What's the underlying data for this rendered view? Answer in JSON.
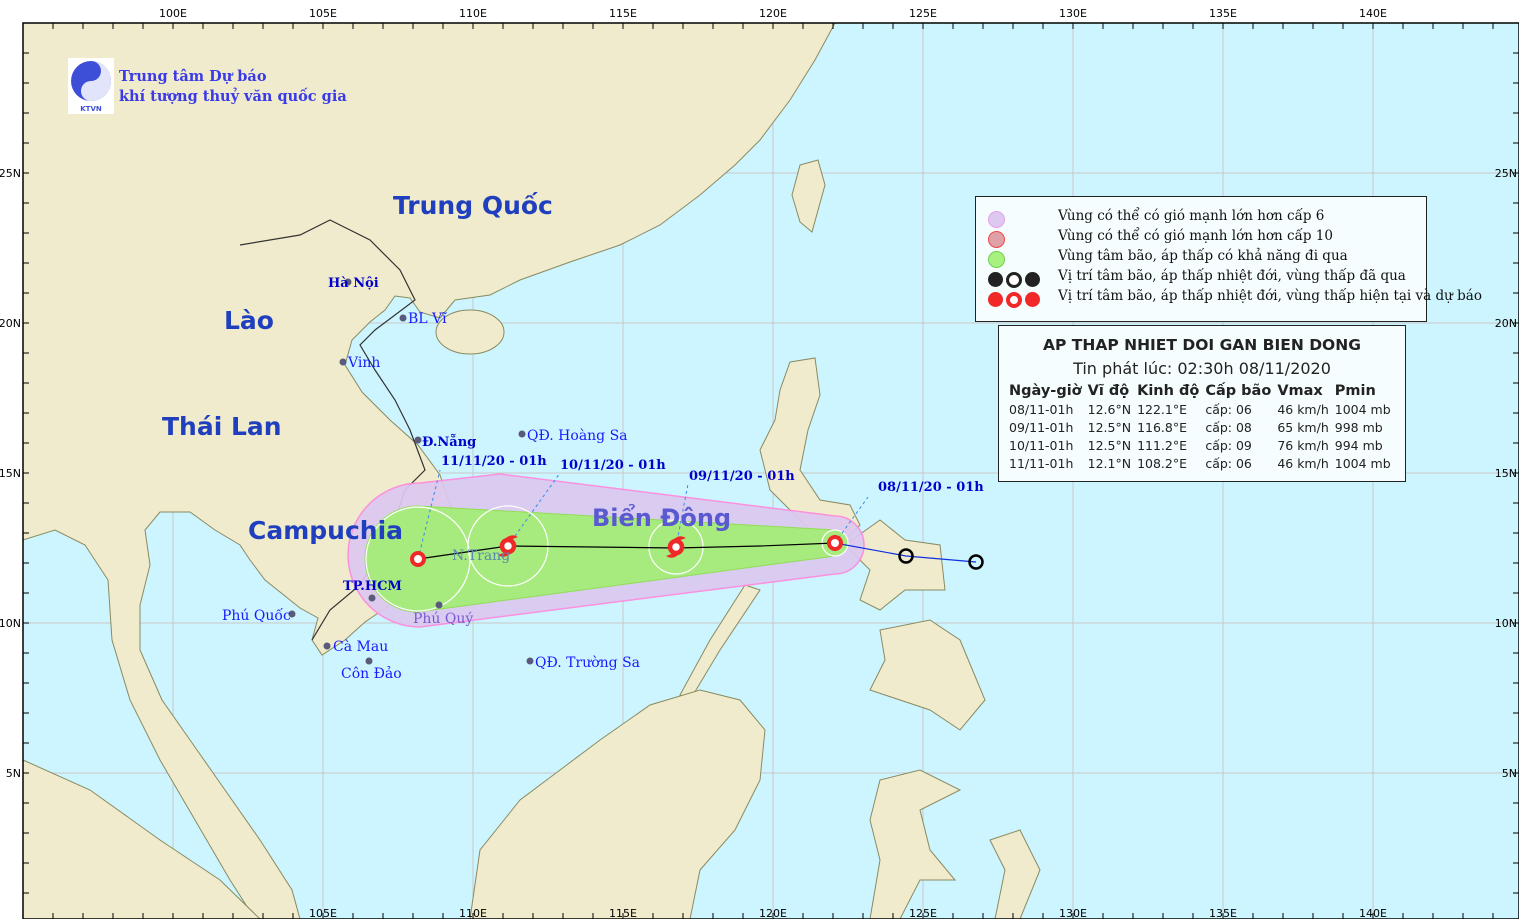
{
  "brand": {
    "line1": "Trung tâm Dự báo",
    "line2": "khí tượng thuỷ văn quốc gia",
    "logo_text": "KTVN"
  },
  "axes": {
    "lon_top": [
      "100E",
      "105E",
      "110E",
      "115E",
      "120E",
      "125E",
      "130E",
      "135E",
      "140E"
    ],
    "lon_bottom": [
      "105E",
      "110E",
      "115E",
      "120E",
      "125E",
      "130E",
      "135E",
      "140E"
    ],
    "lat": [
      "25N",
      "20N",
      "15N",
      "10N",
      "5N"
    ]
  },
  "countries": {
    "china": "Trung Quốc",
    "laos": "Lào",
    "thailand": "Thái Lan",
    "cambodia": "Campuchia",
    "sea": "Biển Đông"
  },
  "places": [
    "Hà Nội",
    "BL Vĩ",
    "Vinh",
    "Đ.Nẵng",
    "QĐ. Hoàng Sa",
    "N.Trang",
    "TP.HCM",
    "Phú Quốc",
    "Phú Quý",
    "Cà Mau",
    "Côn Đảo",
    "QĐ. Trường Sa"
  ],
  "track_labels": [
    "08/11/20 - 01h",
    "09/11/20 - 01h",
    "10/11/20 - 01h",
    "11/11/20 - 01h"
  ],
  "legend": [
    {
      "icon": "purple-circle",
      "color": "#dcc8f0",
      "text": "Vùng có thể có gió mạnh lớn hơn cấp 6"
    },
    {
      "icon": "red-circle",
      "color": "#e0a0a8",
      "text": "Vùng có thể có gió mạnh lớn hơn cấp 10"
    },
    {
      "icon": "green-circle",
      "color": "#a8f080",
      "text": "Vùng tâm bão, áp thấp có khả năng đi qua"
    },
    {
      "icon": "past-symbols",
      "color": "#222222",
      "text": "Vị trí tâm bão, áp thấp nhiệt đới, vùng thấp đã qua"
    },
    {
      "icon": "forecast-symbols",
      "color": "#f02828",
      "text": "Vị trí tâm bão, áp thấp nhiệt đới, vùng thấp hiện tại và dự báo"
    }
  ],
  "info": {
    "title": "AP THAP NHIET DOI GAN BIEN DONG",
    "issued": "Tin phát lúc: 02:30h 08/11/2020",
    "headers": [
      "Ngày-giờ",
      "Vĩ độ",
      "Kinh độ",
      "Cấp bão",
      "Vmax",
      "Pmin"
    ],
    "rows": [
      [
        "08/11-01h",
        "12.6°N",
        "122.1°E",
        "cấp: 06",
        "46 km/h",
        "1004 mb"
      ],
      [
        "09/11-01h",
        "12.5°N",
        "116.8°E",
        "cấp: 08",
        "65 km/h",
        "998 mb"
      ],
      [
        "10/11-01h",
        "12.5°N",
        "111.2°E",
        "cấp: 09",
        "76 km/h",
        "994 mb"
      ],
      [
        "11/11-01h",
        "12.1°N",
        "108.2°E",
        "cấp: 06",
        "46 km/h",
        "1004 mb"
      ]
    ]
  },
  "colors": {
    "sea": "#ccf5ff",
    "land": "#f0ebcc",
    "wind6": "#dcc8f0",
    "center_zone": "#a0f070",
    "forecast": "#f02828",
    "past_track": "#1030e0"
  }
}
